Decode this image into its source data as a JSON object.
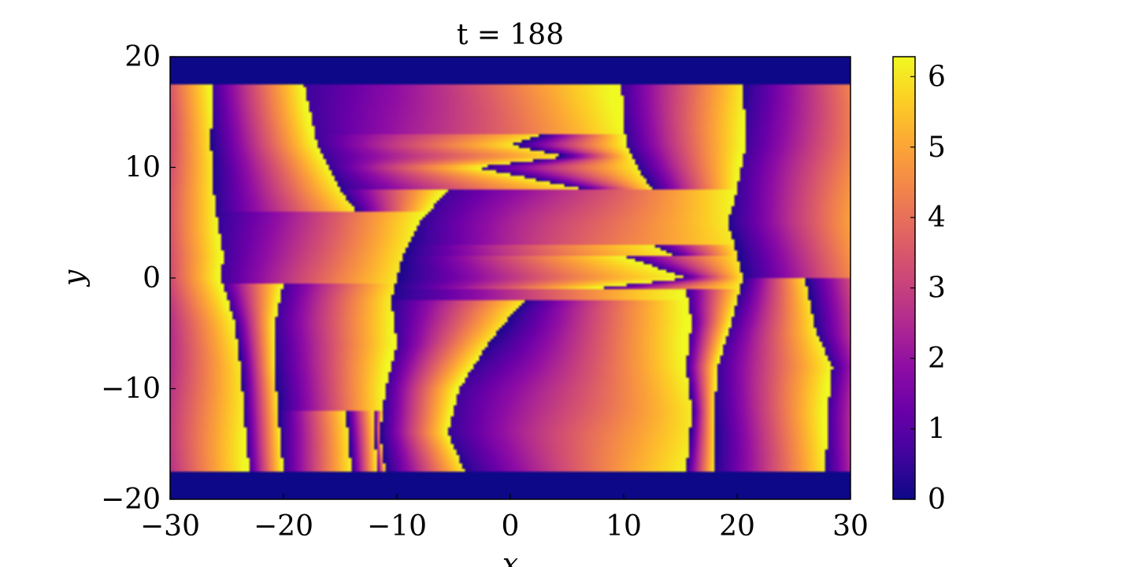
{
  "chart_data": {
    "type": "heatmap",
    "title": "t = 188",
    "xlabel": "x",
    "ylabel": "y",
    "xlim": [
      -30,
      30
    ],
    "ylim": [
      -20,
      20
    ],
    "xticks": [
      -30,
      -20,
      -10,
      0,
      10,
      20,
      30
    ],
    "xtick_labels": [
      "−30",
      "−20",
      "−10",
      "0",
      "10",
      "20",
      "30"
    ],
    "yticks": [
      -20,
      -10,
      0,
      10,
      20
    ],
    "ytick_labels": [
      "−20",
      "−10",
      "0",
      "10",
      "20"
    ],
    "colorbar": {
      "colormap": "plasma",
      "range": [
        0,
        6.2832
      ],
      "ticks": [
        0,
        1,
        2,
        3,
        4,
        5,
        6
      ],
      "tick_labels": [
        "0",
        "1",
        "2",
        "3",
        "4",
        "5",
        "6"
      ]
    },
    "field": {
      "description_values": "phase angle in [0, 2π) over the domain; outside |y| ≈ 17.6 the value is ≈ 0",
      "active_y_range": [
        -17.6,
        17.6
      ],
      "vortex_lines": [
        {
          "x_at_y": [
            [
              17.6,
              -26.3
            ],
            [
              12,
              -26.4
            ],
            [
              8,
              -26.2
            ],
            [
              5,
              -25.8
            ],
            [
              2,
              -25.3
            ],
            [
              0,
              -25.5
            ],
            [
              -4,
              -24.3
            ],
            [
              -8,
              -23.8
            ],
            [
              -12,
              -23.5
            ],
            [
              -17.6,
              -23.0
            ]
          ]
        },
        {
          "x_at_y": [
            [
              17.6,
              -18.2
            ],
            [
              12,
              -17
            ],
            [
              10,
              -16.0
            ],
            [
              8,
              -15.0
            ],
            [
              6,
              -13.6
            ]
          ]
        },
        {
          "x_at_y": [
            [
              -0.5,
              -20.0
            ],
            [
              -4,
              -20.7
            ],
            [
              -8,
              -20.8
            ],
            [
              -12,
              -20.5
            ],
            [
              -17.6,
              -20.0
            ]
          ]
        },
        {
          "x_at_y": [
            [
              -12,
              -14.5
            ],
            [
              -17.6,
              -14.0
            ]
          ]
        },
        {
          "x_at_y": [
            [
              -12,
              -12.0
            ],
            [
              -17.6,
              -11.8
            ]
          ]
        },
        {
          "x_at_y": [
            [
              -2,
              -10.5
            ],
            [
              2,
              -9.5
            ],
            [
              5,
              -8.0
            ],
            [
              8,
              -5.5
            ],
            [
              10,
              -3.0
            ],
            [
              12,
              0
            ],
            [
              13,
              3.0
            ],
            [
              11,
              5.0
            ],
            [
              8,
              6.5
            ]
          ]
        },
        {
          "x_at_y": [
            [
              -2,
              -10.5
            ],
            [
              -6,
              -10.0
            ],
            [
              -10,
              -11.0
            ],
            [
              -14,
              -11.5
            ],
            [
              -17.6,
              -11.0
            ]
          ]
        },
        {
          "x_at_y": [
            [
              -17.6,
              -4.0
            ],
            [
              -14,
              -5.5
            ],
            [
              -10,
              -4.5
            ],
            [
              -6,
              -2.0
            ],
            [
              -3,
              0.3
            ],
            [
              -2,
              1.5
            ]
          ]
        },
        {
          "x_at_y": [
            [
              17.6,
              9.8
            ],
            [
              12,
              10.2
            ],
            [
              10,
              11.2
            ],
            [
              8,
              12.5
            ]
          ]
        },
        {
          "x_at_y": [
            [
              -1,
              7.3
            ],
            [
              2,
              10.0
            ],
            [
              3,
              12.5
            ],
            [
              2,
              14.5
            ],
            [
              0,
              15.5
            ]
          ]
        },
        {
          "x_at_y": [
            [
              -1,
              15.5
            ],
            [
              -4,
              16.0
            ],
            [
              -8,
              15.5
            ],
            [
              -12,
              16.0
            ],
            [
              -17.6,
              15.5
            ]
          ]
        },
        {
          "x_at_y": [
            [
              17.6,
              20.5
            ],
            [
              12,
              20.8
            ],
            [
              8,
              20.0
            ],
            [
              5,
              19.2
            ],
            [
              2,
              20.0
            ],
            [
              0,
              20.5
            ],
            [
              -4,
              19.5
            ],
            [
              -8,
              18.3
            ],
            [
              -12,
              18.0
            ],
            [
              -17.6,
              18.0
            ]
          ]
        },
        {
          "x_at_y": [
            [
              0,
              26.0
            ],
            [
              -5,
              27.0
            ],
            [
              -8,
              28.4
            ],
            [
              -12,
              28.0
            ],
            [
              -17.6,
              27.8
            ]
          ]
        }
      ]
    }
  }
}
